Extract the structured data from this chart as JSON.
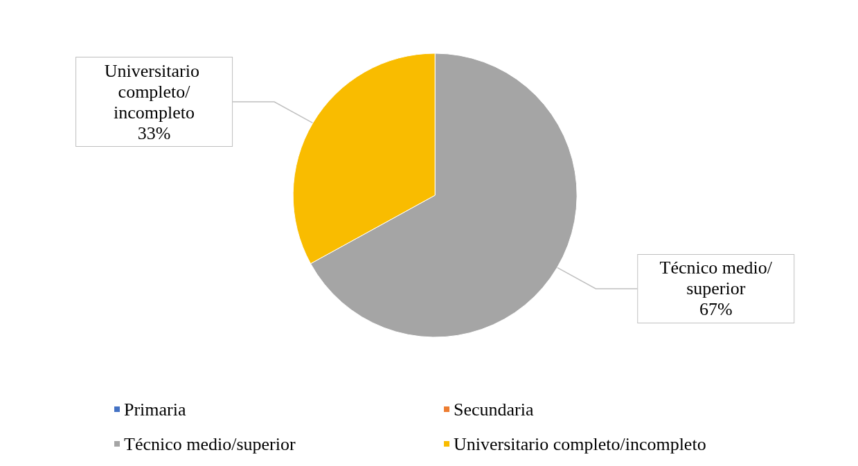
{
  "chart_data": {
    "type": "pie",
    "categories": [
      "Primaria",
      "Secundaria",
      "Técnico medio/superior",
      "Universitario completo/incompleto"
    ],
    "values": [
      0,
      0,
      67,
      33
    ],
    "colors": [
      "#4472c4",
      "#ed7d31",
      "#a5a5a5",
      "#f9bc00"
    ],
    "value_labels": [
      null,
      null,
      "67%",
      "33%"
    ],
    "legend": "bottom"
  }
}
